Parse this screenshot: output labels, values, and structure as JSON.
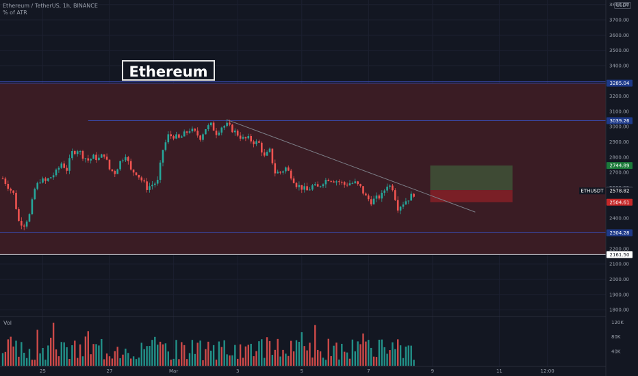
{
  "header": {
    "symbol_line": "Ethereum / TetherUS, 1h, BINANCE",
    "indicator_line": "% of ATR",
    "currency_button": "USDT"
  },
  "annotation": {
    "title": "Ethereum"
  },
  "volume": {
    "label": "Vol"
  },
  "colors": {
    "background": "#131722",
    "up": "#26a69a",
    "down": "#ef5350",
    "zone": "#3a1c24",
    "level_line": "#3949ab",
    "target_zone": "#3e4a34",
    "stop_zone": "#7a1f26"
  },
  "chart_data": {
    "type": "candlestick",
    "title": "",
    "y_axis": {
      "ticks": [
        "3800.00",
        "3700.00",
        "3600.00",
        "3500.00",
        "3400.00",
        "3200.00",
        "3100.00",
        "3000.00",
        "2900.00",
        "2800.00",
        "2700.00",
        "2600.00",
        "2400.00",
        "2300.00",
        "2200.00",
        "2100.00",
        "2000.00",
        "1900.00",
        "1800.00"
      ],
      "range": [
        1760,
        3830
      ]
    },
    "x_axis": {
      "ticks": [
        {
          "label": "25",
          "index": 15
        },
        {
          "label": "27",
          "index": 40
        },
        {
          "label": "Mar",
          "index": 64
        },
        {
          "label": "3",
          "index": 88
        },
        {
          "label": "5",
          "index": 112
        },
        {
          "label": "7",
          "index": 137
        },
        {
          "label": "9",
          "index": 161
        },
        {
          "label": "11",
          "index": 186
        },
        {
          "label": "12:00",
          "index": 204
        }
      ]
    },
    "price_labels": [
      {
        "label": "3285.04",
        "value": 3285.04,
        "bg": "#1e3a8a",
        "fg": "#ffffff"
      },
      {
        "label": "3039.26",
        "value": 3039.26,
        "bg": "#1e3a8a",
        "fg": "#ffffff"
      },
      {
        "label": "2744.89",
        "value": 2744.89,
        "bg": "#1b7a3a",
        "fg": "#ffffff"
      },
      {
        "label": "2584.01",
        "value": 2584.01,
        "bg": "#4a4f5c",
        "fg": "#ffffff"
      },
      {
        "label": "2578.82",
        "value": 2578.82,
        "bg": "#131722",
        "fg": "#ffffff",
        "name": "ETHUSDT"
      },
      {
        "label": "2504.61",
        "value": 2504.61,
        "bg": "#c62828",
        "fg": "#ffffff"
      },
      {
        "label": "2304.28",
        "value": 2304.28,
        "bg": "#1e3a8a",
        "fg": "#ffffff"
      },
      {
        "label": "2161.50",
        "value": 2161.5,
        "bg": "#ffffff",
        "fg": "#131722"
      }
    ],
    "horizontal_levels": [
      3285.04,
      3039.26,
      2304.28,
      2161.5
    ],
    "zone": {
      "top": 3285.04,
      "bottom": 2161.5
    },
    "resistance_segment": {
      "from_index": 32,
      "to_index": 220,
      "value": 3039.26
    },
    "trendline": {
      "from_index": 84,
      "from_value": 3045,
      "to_index": 177,
      "to_value": 2440
    },
    "position": {
      "from_index": 155,
      "to_index": 193,
      "entry": 2584.01,
      "target": 2744.89,
      "stop": 2504.61
    },
    "close_points": [
      [
        0,
        2660
      ],
      [
        2,
        2610
      ],
      [
        4,
        2560
      ],
      [
        6,
        2380
      ],
      [
        8,
        2360
      ],
      [
        10,
        2420
      ],
      [
        12,
        2590
      ],
      [
        14,
        2650
      ],
      [
        16,
        2640
      ],
      [
        18,
        2670
      ],
      [
        20,
        2700
      ],
      [
        22,
        2760
      ],
      [
        24,
        2720
      ],
      [
        26,
        2830
      ],
      [
        28,
        2850
      ],
      [
        30,
        2810
      ],
      [
        32,
        2780
      ],
      [
        34,
        2800
      ],
      [
        36,
        2790
      ],
      [
        38,
        2820
      ],
      [
        40,
        2720
      ],
      [
        42,
        2700
      ],
      [
        44,
        2770
      ],
      [
        46,
        2820
      ],
      [
        48,
        2710
      ],
      [
        50,
        2700
      ],
      [
        52,
        2650
      ],
      [
        54,
        2600
      ],
      [
        56,
        2620
      ],
      [
        58,
        2640
      ],
      [
        60,
        2850
      ],
      [
        62,
        2940
      ],
      [
        64,
        2940
      ],
      [
        66,
        2920
      ],
      [
        68,
        2950
      ],
      [
        70,
        2980
      ],
      [
        72,
        2960
      ],
      [
        74,
        2930
      ],
      [
        76,
        2990
      ],
      [
        78,
        3010
      ],
      [
        80,
        2960
      ],
      [
        82,
        3000
      ],
      [
        84,
        3010
      ],
      [
        86,
        2980
      ],
      [
        88,
        2950
      ],
      [
        90,
        2920
      ],
      [
        92,
        2920
      ],
      [
        94,
        2900
      ],
      [
        96,
        2890
      ],
      [
        98,
        2800
      ],
      [
        100,
        2840
      ],
      [
        102,
        2700
      ],
      [
        104,
        2700
      ],
      [
        106,
        2730
      ],
      [
        108,
        2680
      ],
      [
        110,
        2620
      ],
      [
        112,
        2600
      ],
      [
        114,
        2580
      ],
      [
        116,
        2610
      ],
      [
        118,
        2600
      ],
      [
        120,
        2640
      ],
      [
        122,
        2660
      ],
      [
        124,
        2650
      ],
      [
        126,
        2640
      ],
      [
        128,
        2620
      ],
      [
        130,
        2630
      ],
      [
        132,
        2630
      ],
      [
        134,
        2600
      ],
      [
        136,
        2540
      ],
      [
        138,
        2510
      ],
      [
        140,
        2530
      ],
      [
        142,
        2550
      ],
      [
        144,
        2620
      ],
      [
        146,
        2600
      ],
      [
        148,
        2470
      ],
      [
        150,
        2500
      ],
      [
        152,
        2530
      ],
      [
        154,
        2560
      ]
    ],
    "volume": {
      "ticks": [
        "120K",
        "80K",
        "40K"
      ],
      "range": [
        0,
        130000
      ]
    }
  }
}
